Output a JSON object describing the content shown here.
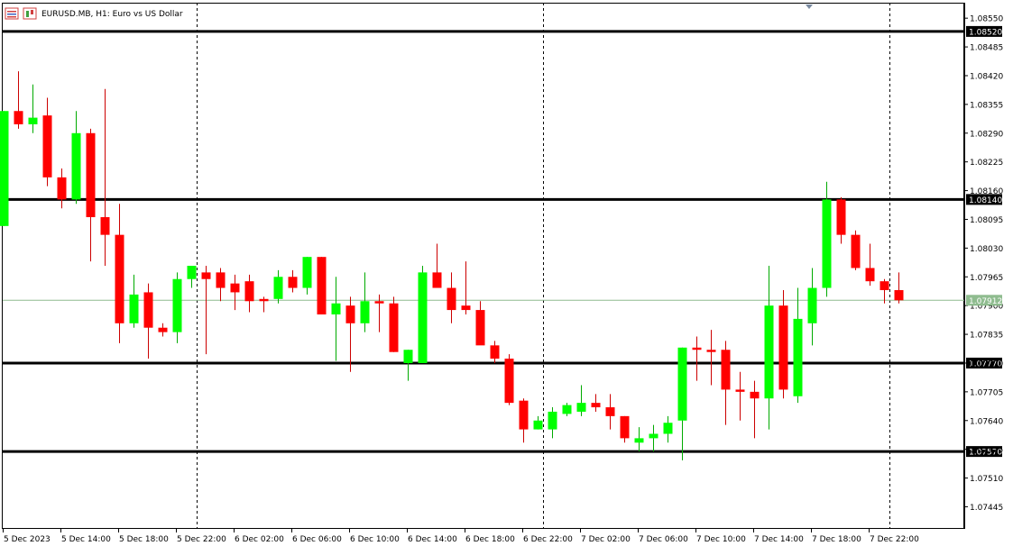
{
  "header": {
    "title": "EURUSD.MB, H1:  Euro vs US Dollar"
  },
  "colors": {
    "up": "#00ff00",
    "down": "#ff0000",
    "wick_up": "#00aa00",
    "wick_down": "#cc0000",
    "grid": "#000000",
    "level_line": "#000000",
    "price_line": "#8fbc8f",
    "label_bg": "#000000",
    "last_price_bg": "#8fbc8f"
  },
  "chart_data": {
    "type": "candlestick",
    "symbol": "EURUSD.MB",
    "timeframe": "H1",
    "ylim": [
      1.07395,
      1.08585
    ],
    "y_ticks": [
      "1.08550",
      "1.08485",
      "1.08420",
      "1.08355",
      "1.08290",
      "1.08225",
      "1.08160",
      "1.08095",
      "1.08030",
      "1.07965",
      "1.07900",
      "1.07835",
      "1.07770",
      "1.07705",
      "1.07640",
      "1.07575",
      "1.07510",
      "1.07445"
    ],
    "x_labels": [
      "5 Dec 2023",
      "5 Dec 14:00",
      "5 Dec 18:00",
      "5 Dec 22:00",
      "6 Dec 02:00",
      "6 Dec 06:00",
      "6 Dec 10:00",
      "6 Dec 14:00",
      "6 Dec 18:00",
      "6 Dec 22:00",
      "7 Dec 02:00",
      "7 Dec 06:00",
      "7 Dec 10:00",
      "7 Dec 14:00",
      "7 Dec 18:00",
      "7 Dec 22:00"
    ],
    "levels": [
      {
        "price": 1.0852,
        "label": "1.08520"
      },
      {
        "price": 1.0814,
        "label": "1.08140"
      },
      {
        "price": 1.0777,
        "label": "1.07770"
      },
      {
        "price": 1.0757,
        "label": "1.07570"
      }
    ],
    "last_price": {
      "price": 1.07912,
      "label": "1.07912"
    },
    "period_separators": [
      "5 Dec 22:00",
      "6 Dec 22:00",
      "7 Dec 22:00"
    ],
    "candles": [
      {
        "o": 1.0808,
        "h": 1.0834,
        "l": 1.0808,
        "c": 1.0834
      },
      {
        "o": 1.0834,
        "h": 1.0843,
        "l": 1.083,
        "c": 1.0831
      },
      {
        "o": 1.0831,
        "h": 1.084,
        "l": 1.0829,
        "c": 1.08325
      },
      {
        "o": 1.0833,
        "h": 1.0837,
        "l": 1.0817,
        "c": 1.0819
      },
      {
        "o": 1.0819,
        "h": 1.0821,
        "l": 1.0812,
        "c": 1.0814
      },
      {
        "o": 1.0814,
        "h": 1.0834,
        "l": 1.0813,
        "c": 1.0829
      },
      {
        "o": 1.0829,
        "h": 1.083,
        "l": 1.08,
        "c": 1.081
      },
      {
        "o": 1.081,
        "h": 1.0839,
        "l": 1.0799,
        "c": 1.0806
      },
      {
        "o": 1.0806,
        "h": 1.0813,
        "l": 1.07815,
        "c": 1.0786
      },
      {
        "o": 1.0786,
        "h": 1.0797,
        "l": 1.0785,
        "c": 1.07925
      },
      {
        "o": 1.0793,
        "h": 1.0795,
        "l": 1.0778,
        "c": 1.0785
      },
      {
        "o": 1.0785,
        "h": 1.0786,
        "l": 1.0783,
        "c": 1.0784
      },
      {
        "o": 1.0784,
        "h": 1.07975,
        "l": 1.07815,
        "c": 1.0796
      },
      {
        "o": 1.0796,
        "h": 1.0799,
        "l": 1.0794,
        "c": 1.0799
      },
      {
        "o": 1.07975,
        "h": 1.0799,
        "l": 1.0779,
        "c": 1.0796
      },
      {
        "o": 1.07975,
        "h": 1.07985,
        "l": 1.0791,
        "c": 1.0794
      },
      {
        "o": 1.0795,
        "h": 1.0797,
        "l": 1.0789,
        "c": 1.0793
      },
      {
        "o": 1.07955,
        "h": 1.0797,
        "l": 1.07885,
        "c": 1.0791
      },
      {
        "o": 1.07915,
        "h": 1.0792,
        "l": 1.07885,
        "c": 1.0791
      },
      {
        "o": 1.07915,
        "h": 1.0798,
        "l": 1.07905,
        "c": 1.07965
      },
      {
        "o": 1.07965,
        "h": 1.0798,
        "l": 1.0793,
        "c": 1.0794
      },
      {
        "o": 1.0794,
        "h": 1.0801,
        "l": 1.07925,
        "c": 1.0801
      },
      {
        "o": 1.0801,
        "h": 1.0801,
        "l": 1.0788,
        "c": 1.0788
      },
      {
        "o": 1.0788,
        "h": 1.07965,
        "l": 1.07775,
        "c": 1.07905
      },
      {
        "o": 1.079,
        "h": 1.0792,
        "l": 1.0775,
        "c": 1.0786
      },
      {
        "o": 1.0786,
        "h": 1.07975,
        "l": 1.0784,
        "c": 1.0791
      },
      {
        "o": 1.0791,
        "h": 1.07925,
        "l": 1.0784,
        "c": 1.07905
      },
      {
        "o": 1.07905,
        "h": 1.0792,
        "l": 1.07795,
        "c": 1.07795
      },
      {
        "o": 1.0777,
        "h": 1.078,
        "l": 1.0773,
        "c": 1.078
      },
      {
        "o": 1.0777,
        "h": 1.0799,
        "l": 1.0777,
        "c": 1.07975
      },
      {
        "o": 1.07975,
        "h": 1.0804,
        "l": 1.0795,
        "c": 1.0794
      },
      {
        "o": 1.0794,
        "h": 1.07975,
        "l": 1.0786,
        "c": 1.0789
      },
      {
        "o": 1.079,
        "h": 1.08,
        "l": 1.0788,
        "c": 1.0789
      },
      {
        "o": 1.0789,
        "h": 1.0791,
        "l": 1.07815,
        "c": 1.0781
      },
      {
        "o": 1.0781,
        "h": 1.0782,
        "l": 1.0777,
        "c": 1.0778
      },
      {
        "o": 1.0778,
        "h": 1.0779,
        "l": 1.07675,
        "c": 1.0768
      },
      {
        "o": 1.07685,
        "h": 1.0769,
        "l": 1.0759,
        "c": 1.0762
      },
      {
        "o": 1.0762,
        "h": 1.0765,
        "l": 1.0762,
        "c": 1.0764
      },
      {
        "o": 1.0762,
        "h": 1.0767,
        "l": 1.076,
        "c": 1.0766
      },
      {
        "o": 1.07655,
        "h": 1.0768,
        "l": 1.0765,
        "c": 1.07675
      },
      {
        "o": 1.0766,
        "h": 1.0772,
        "l": 1.0765,
        "c": 1.0768
      },
      {
        "o": 1.0768,
        "h": 1.077,
        "l": 1.0766,
        "c": 1.0767
      },
      {
        "o": 1.0767,
        "h": 1.077,
        "l": 1.0762,
        "c": 1.0765
      },
      {
        "o": 1.0765,
        "h": 1.0765,
        "l": 1.0759,
        "c": 1.076
      },
      {
        "o": 1.0759,
        "h": 1.07625,
        "l": 1.0757,
        "c": 1.076
      },
      {
        "o": 1.076,
        "h": 1.0763,
        "l": 1.0757,
        "c": 1.0761
      },
      {
        "o": 1.0761,
        "h": 1.0765,
        "l": 1.0759,
        "c": 1.07635
      },
      {
        "o": 1.0764,
        "h": 1.07805,
        "l": 1.0755,
        "c": 1.07805
      },
      {
        "o": 1.07805,
        "h": 1.0783,
        "l": 1.0773,
        "c": 1.078
      },
      {
        "o": 1.078,
        "h": 1.07845,
        "l": 1.0772,
        "c": 1.07795
      },
      {
        "o": 1.078,
        "h": 1.0782,
        "l": 1.0763,
        "c": 1.0771
      },
      {
        "o": 1.0771,
        "h": 1.0775,
        "l": 1.0764,
        "c": 1.07705
      },
      {
        "o": 1.07705,
        "h": 1.0773,
        "l": 1.076,
        "c": 1.0769
      },
      {
        "o": 1.0769,
        "h": 1.0799,
        "l": 1.0762,
        "c": 1.079
      },
      {
        "o": 1.079,
        "h": 1.07935,
        "l": 1.0769,
        "c": 1.0771
      },
      {
        "o": 1.07695,
        "h": 1.0794,
        "l": 1.0768,
        "c": 1.0787
      },
      {
        "o": 1.0786,
        "h": 1.07985,
        "l": 1.0781,
        "c": 1.0794
      },
      {
        "o": 1.0794,
        "h": 1.0818,
        "l": 1.0792,
        "c": 1.0814
      },
      {
        "o": 1.0814,
        "h": 1.08145,
        "l": 1.0804,
        "c": 1.0806
      },
      {
        "o": 1.0806,
        "h": 1.0807,
        "l": 1.0798,
        "c": 1.07985
      },
      {
        "o": 1.07985,
        "h": 1.0804,
        "l": 1.07945,
        "c": 1.07955
      },
      {
        "o": 1.07955,
        "h": 1.0796,
        "l": 1.07905,
        "c": 1.07935
      },
      {
        "o": 1.07935,
        "h": 1.07975,
        "l": 1.07905,
        "c": 1.07912
      }
    ]
  }
}
